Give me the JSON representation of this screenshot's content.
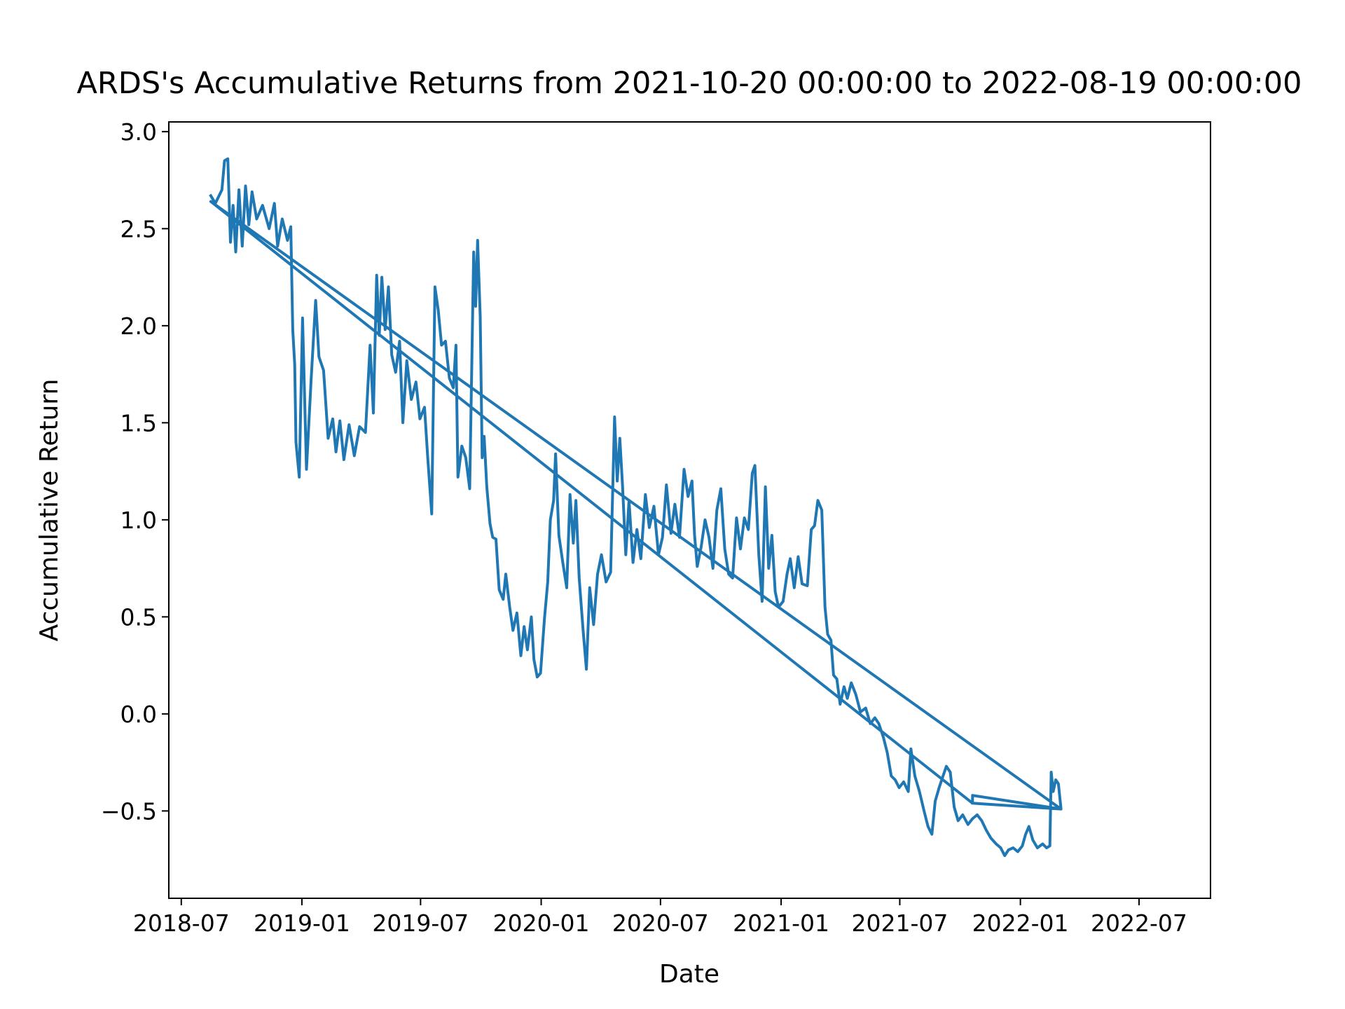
{
  "chart_data": {
    "type": "line",
    "title": "ARDS's Accumulative Returns from 2021-10-20 00:00:00 to 2022-08-19 00:00:00",
    "xlabel": "Date",
    "ylabel": "Accumulative Return",
    "xlim": [
      "2018-06-12",
      "2022-10-18"
    ],
    "ylim": [
      -0.95,
      3.05
    ],
    "grid": false,
    "line_color": "#1f77b4",
    "x_ticks": [
      "2018-07-01",
      "2019-01-01",
      "2019-07-01",
      "2020-01-01",
      "2020-07-01",
      "2021-01-01",
      "2021-07-01",
      "2022-01-01",
      "2022-07-01"
    ],
    "x_tick_labels": [
      "2018-07",
      "2019-01",
      "2019-07",
      "2020-01",
      "2020-07",
      "2021-01",
      "2021-07",
      "2022-01",
      "2022-07"
    ],
    "y_ticks": [
      -0.5,
      0.0,
      0.5,
      1.0,
      1.5,
      2.0,
      2.5,
      3.0
    ],
    "y_tick_labels": [
      "−0.5",
      "0.0",
      "0.5",
      "1.0",
      "1.5",
      "2.0",
      "2.5",
      "3.0"
    ],
    "series": [
      {
        "points": [
          [
            "2018-08-15",
            2.67
          ],
          [
            "2018-08-22",
            2.63
          ],
          [
            "2018-09-01",
            2.7
          ],
          [
            "2018-09-05",
            2.85
          ],
          [
            "2018-09-10",
            2.86
          ],
          [
            "2018-09-14",
            2.43
          ],
          [
            "2018-09-18",
            2.62
          ],
          [
            "2018-09-22",
            2.38
          ],
          [
            "2018-09-27",
            2.7
          ],
          [
            "2018-10-02",
            2.41
          ],
          [
            "2018-10-07",
            2.72
          ],
          [
            "2018-10-12",
            2.52
          ],
          [
            "2018-10-17",
            2.69
          ],
          [
            "2018-10-24",
            2.55
          ],
          [
            "2018-11-02",
            2.62
          ],
          [
            "2018-11-12",
            2.5
          ],
          [
            "2018-11-20",
            2.63
          ],
          [
            "2018-11-25",
            2.41
          ],
          [
            "2018-12-02",
            2.55
          ],
          [
            "2018-12-10",
            2.44
          ],
          [
            "2018-12-15",
            2.51
          ],
          [
            "2018-12-18",
            1.98
          ],
          [
            "2018-12-21",
            1.8
          ],
          [
            "2018-12-23",
            1.4
          ],
          [
            "2018-12-28",
            1.22
          ],
          [
            "2019-01-02",
            2.04
          ],
          [
            "2019-01-08",
            1.26
          ],
          [
            "2019-01-15",
            1.72
          ],
          [
            "2019-01-22",
            2.13
          ],
          [
            "2019-01-27",
            1.84
          ],
          [
            "2019-02-03",
            1.77
          ],
          [
            "2019-02-10",
            1.42
          ],
          [
            "2019-02-17",
            1.52
          ],
          [
            "2019-02-22",
            1.35
          ],
          [
            "2019-02-28",
            1.51
          ],
          [
            "2019-03-06",
            1.31
          ],
          [
            "2019-03-14",
            1.49
          ],
          [
            "2019-03-22",
            1.33
          ],
          [
            "2019-03-30",
            1.48
          ],
          [
            "2019-04-08",
            1.45
          ],
          [
            "2019-04-15",
            1.9
          ],
          [
            "2019-04-20",
            1.55
          ],
          [
            "2019-04-25",
            2.26
          ],
          [
            "2019-04-29",
            1.95
          ],
          [
            "2019-05-03",
            2.25
          ],
          [
            "2019-05-08",
            1.98
          ],
          [
            "2019-05-13",
            2.2
          ],
          [
            "2019-05-18",
            1.85
          ],
          [
            "2019-05-24",
            1.76
          ],
          [
            "2019-05-30",
            1.92
          ],
          [
            "2019-06-04",
            1.5
          ],
          [
            "2019-06-10",
            1.82
          ],
          [
            "2019-06-17",
            1.62
          ],
          [
            "2019-06-24",
            1.71
          ],
          [
            "2019-06-30",
            1.52
          ],
          [
            "2019-07-07",
            1.58
          ],
          [
            "2019-07-12",
            1.32
          ],
          [
            "2019-07-18",
            1.03
          ],
          [
            "2019-07-23",
            2.2
          ],
          [
            "2019-07-28",
            2.08
          ],
          [
            "2019-08-02",
            1.9
          ],
          [
            "2019-08-08",
            1.92
          ],
          [
            "2019-08-14",
            1.73
          ],
          [
            "2019-08-20",
            1.68
          ],
          [
            "2019-08-24",
            1.9
          ],
          [
            "2019-08-27",
            1.22
          ],
          [
            "2019-09-02",
            1.38
          ],
          [
            "2019-09-08",
            1.32
          ],
          [
            "2019-09-14",
            1.16
          ],
          [
            "2019-09-20",
            2.38
          ],
          [
            "2019-09-23",
            2.1
          ],
          [
            "2019-09-26",
            2.44
          ],
          [
            "2019-09-30",
            2.05
          ],
          [
            "2019-10-03",
            1.32
          ],
          [
            "2019-10-06",
            1.43
          ],
          [
            "2019-10-10",
            1.17
          ],
          [
            "2019-10-15",
            0.98
          ],
          [
            "2019-10-19",
            0.91
          ],
          [
            "2019-10-24",
            0.9
          ],
          [
            "2019-10-29",
            0.64
          ],
          [
            "2019-11-04",
            0.59
          ],
          [
            "2019-11-08",
            0.72
          ],
          [
            "2019-11-14",
            0.55
          ],
          [
            "2019-11-19",
            0.43
          ],
          [
            "2019-11-25",
            0.52
          ],
          [
            "2019-12-01",
            0.3
          ],
          [
            "2019-12-06",
            0.45
          ],
          [
            "2019-12-11",
            0.33
          ],
          [
            "2019-12-17",
            0.5
          ],
          [
            "2019-12-21",
            0.28
          ],
          [
            "2019-12-26",
            0.19
          ],
          [
            "2019-12-31",
            0.21
          ],
          [
            "2020-01-06",
            0.49
          ],
          [
            "2020-01-11",
            0.68
          ],
          [
            "2020-01-15",
            1.0
          ],
          [
            "2020-01-20",
            1.1
          ],
          [
            "2020-01-23",
            1.34
          ],
          [
            "2020-01-28",
            0.92
          ],
          [
            "2020-02-03",
            0.78
          ],
          [
            "2020-02-09",
            0.65
          ],
          [
            "2020-02-14",
            1.13
          ],
          [
            "2020-02-19",
            0.88
          ],
          [
            "2020-02-23",
            1.1
          ],
          [
            "2020-02-28",
            0.7
          ],
          [
            "2020-03-05",
            0.43
          ],
          [
            "2020-03-10",
            0.23
          ],
          [
            "2020-03-15",
            0.65
          ],
          [
            "2020-03-21",
            0.46
          ],
          [
            "2020-03-27",
            0.72
          ],
          [
            "2020-04-02",
            0.82
          ],
          [
            "2020-04-09",
            0.68
          ],
          [
            "2020-04-16",
            0.73
          ],
          [
            "2020-04-22",
            1.53
          ],
          [
            "2020-04-26",
            1.2
          ],
          [
            "2020-04-30",
            1.42
          ],
          [
            "2020-05-04",
            1.18
          ],
          [
            "2020-05-09",
            0.82
          ],
          [
            "2020-05-14",
            1.1
          ],
          [
            "2020-05-20",
            0.78
          ],
          [
            "2020-05-26",
            0.95
          ],
          [
            "2020-06-01",
            0.8
          ],
          [
            "2020-06-08",
            1.13
          ],
          [
            "2020-06-14",
            0.96
          ],
          [
            "2020-06-21",
            1.07
          ],
          [
            "2020-06-28",
            0.82
          ],
          [
            "2020-07-04",
            0.91
          ],
          [
            "2020-07-10",
            1.18
          ],
          [
            "2020-07-17",
            0.93
          ],
          [
            "2020-07-23",
            1.08
          ],
          [
            "2020-07-30",
            0.91
          ],
          [
            "2020-08-06",
            1.26
          ],
          [
            "2020-08-12",
            1.12
          ],
          [
            "2020-08-18",
            1.2
          ],
          [
            "2020-08-22",
            0.92
          ],
          [
            "2020-08-26",
            0.76
          ],
          [
            "2020-09-01",
            0.86
          ],
          [
            "2020-09-07",
            1.0
          ],
          [
            "2020-09-13",
            0.91
          ],
          [
            "2020-09-19",
            0.75
          ],
          [
            "2020-09-25",
            1.05
          ],
          [
            "2020-10-01",
            1.16
          ],
          [
            "2020-10-07",
            0.85
          ],
          [
            "2020-10-13",
            0.72
          ],
          [
            "2020-10-19",
            0.7
          ],
          [
            "2020-10-25",
            1.01
          ],
          [
            "2020-10-31",
            0.85
          ],
          [
            "2020-11-06",
            1.01
          ],
          [
            "2020-11-12",
            0.95
          ],
          [
            "2020-11-18",
            1.24
          ],
          [
            "2020-11-22",
            1.28
          ],
          [
            "2020-11-28",
            0.82
          ],
          [
            "2020-12-03",
            0.58
          ],
          [
            "2020-12-08",
            1.17
          ],
          [
            "2020-12-13",
            0.75
          ],
          [
            "2020-12-18",
            0.92
          ],
          [
            "2020-12-23",
            0.63
          ],
          [
            "2020-12-28",
            0.55
          ],
          [
            "2021-01-04",
            0.58
          ],
          [
            "2021-01-10",
            0.72
          ],
          [
            "2021-01-15",
            0.8
          ],
          [
            "2021-01-21",
            0.65
          ],
          [
            "2021-01-27",
            0.81
          ],
          [
            "2021-02-02",
            0.67
          ],
          [
            "2021-02-10",
            0.66
          ],
          [
            "2021-02-16",
            0.95
          ],
          [
            "2021-02-21",
            0.97
          ],
          [
            "2021-02-26",
            1.1
          ],
          [
            "2021-03-04",
            1.05
          ],
          [
            "2021-03-09",
            0.55
          ],
          [
            "2021-03-13",
            0.41
          ],
          [
            "2021-03-18",
            0.38
          ],
          [
            "2021-03-22",
            0.2
          ],
          [
            "2021-03-27",
            0.18
          ],
          [
            "2021-04-01",
            0.05
          ],
          [
            "2021-04-07",
            0.14
          ],
          [
            "2021-04-12",
            0.08
          ],
          [
            "2021-04-18",
            0.16
          ],
          [
            "2021-04-25",
            0.1
          ],
          [
            "2021-05-02",
            0.01
          ],
          [
            "2021-05-10",
            0.03
          ],
          [
            "2021-05-17",
            -0.05
          ],
          [
            "2021-05-24",
            -0.02
          ],
          [
            "2021-05-30",
            -0.05
          ],
          [
            "2021-06-06",
            -0.12
          ],
          [
            "2021-06-12",
            -0.2
          ],
          [
            "2021-06-18",
            -0.32
          ],
          [
            "2021-06-24",
            -0.34
          ],
          [
            "2021-06-30",
            -0.38
          ],
          [
            "2021-07-07",
            -0.35
          ],
          [
            "2021-07-14",
            -0.4
          ],
          [
            "2021-07-18",
            -0.18
          ],
          [
            "2021-07-24",
            -0.32
          ],
          [
            "2021-07-31",
            -0.4
          ],
          [
            "2021-08-07",
            -0.5
          ],
          [
            "2021-08-13",
            -0.58
          ],
          [
            "2021-08-19",
            -0.62
          ],
          [
            "2021-08-24",
            -0.45
          ],
          [
            "2021-08-30",
            -0.38
          ],
          [
            "2021-09-05",
            -0.32
          ],
          [
            "2021-09-10",
            -0.27
          ],
          [
            "2021-09-16",
            -0.3
          ],
          [
            "2021-09-22",
            -0.48
          ],
          [
            "2021-09-28",
            -0.55
          ],
          [
            "2021-10-05",
            -0.52
          ],
          [
            "2021-10-13",
            -0.57
          ],
          [
            "2021-10-20",
            -0.54
          ],
          [
            "2021-10-27",
            -0.52
          ],
          [
            "2021-11-03",
            -0.55
          ],
          [
            "2021-11-10",
            -0.6
          ],
          [
            "2021-11-17",
            -0.64
          ],
          [
            "2021-11-25",
            -0.67
          ],
          [
            "2021-12-02",
            -0.69
          ],
          [
            "2021-12-08",
            -0.73
          ],
          [
            "2021-12-14",
            -0.7
          ],
          [
            "2021-12-21",
            -0.69
          ],
          [
            "2021-12-28",
            -0.71
          ],
          [
            "2022-01-04",
            -0.68
          ],
          [
            "2022-01-09",
            -0.62
          ],
          [
            "2022-01-14",
            -0.58
          ],
          [
            "2022-01-20",
            -0.65
          ],
          [
            "2022-01-27",
            -0.69
          ],
          [
            "2022-02-04",
            -0.67
          ],
          [
            "2022-02-10",
            -0.69
          ],
          [
            "2022-02-15",
            -0.68
          ],
          [
            "2022-02-17",
            -0.3
          ],
          [
            "2022-02-20",
            -0.4
          ],
          [
            "2022-02-24",
            -0.34
          ],
          [
            "2022-02-28",
            -0.36
          ],
          [
            "2022-03-04",
            -0.49
          ],
          [
            "2018-08-15",
            2.64
          ],
          [
            "2021-10-20",
            -0.46
          ],
          [
            "2022-03-04",
            -0.49
          ],
          [
            "2021-10-20",
            -0.42
          ],
          [
            "2021-10-20",
            -0.46
          ]
        ]
      }
    ]
  }
}
